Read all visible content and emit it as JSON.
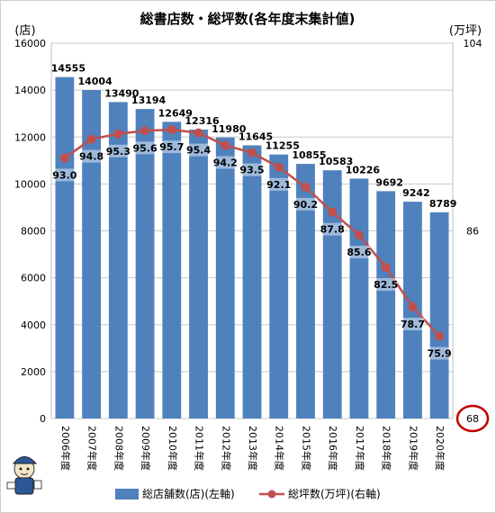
{
  "chart_data": {
    "type": "bar+line",
    "title": "総書店数・総坪数(各年度末集計値)",
    "y_left_unit": "(店)",
    "y_right_unit": "(万坪)",
    "categories": [
      "2006年度",
      "2007年度",
      "2008年度",
      "2009年度",
      "2010年度",
      "2011年度",
      "2012年度",
      "2013年度",
      "2014年度",
      "2015年度",
      "2016年度",
      "2017年度",
      "2018年度",
      "2019年度",
      "2020年度"
    ],
    "series": [
      {
        "name": "総店舗数(店)(左軸)",
        "type": "bar",
        "axis": "left",
        "color": "#4f81bd",
        "values": [
          14555,
          14004,
          13490,
          13194,
          12649,
          12316,
          11980,
          11645,
          11255,
          10855,
          10583,
          10226,
          9692,
          9242,
          8789
        ]
      },
      {
        "name": "総坪数(万坪)(右軸)",
        "type": "line",
        "axis": "right",
        "color": "#c0504d",
        "values": [
          93.0,
          94.8,
          95.3,
          95.6,
          95.7,
          95.4,
          94.2,
          93.5,
          92.1,
          90.2,
          87.8,
          85.6,
          82.5,
          78.7,
          75.9
        ]
      }
    ],
    "y_left": {
      "min": 0,
      "max": 16000,
      "ticks": [
        "0",
        "2000",
        "4000",
        "6000",
        "8000",
        "10000",
        "12000",
        "14000",
        "16000"
      ]
    },
    "y_right": {
      "min": 68,
      "max": 104,
      "ticks": [
        "68",
        "86",
        "104"
      ]
    },
    "highlighted_tick": "68",
    "highlight_color": "#c00000",
    "grid": true,
    "legend_position": "bottom"
  }
}
